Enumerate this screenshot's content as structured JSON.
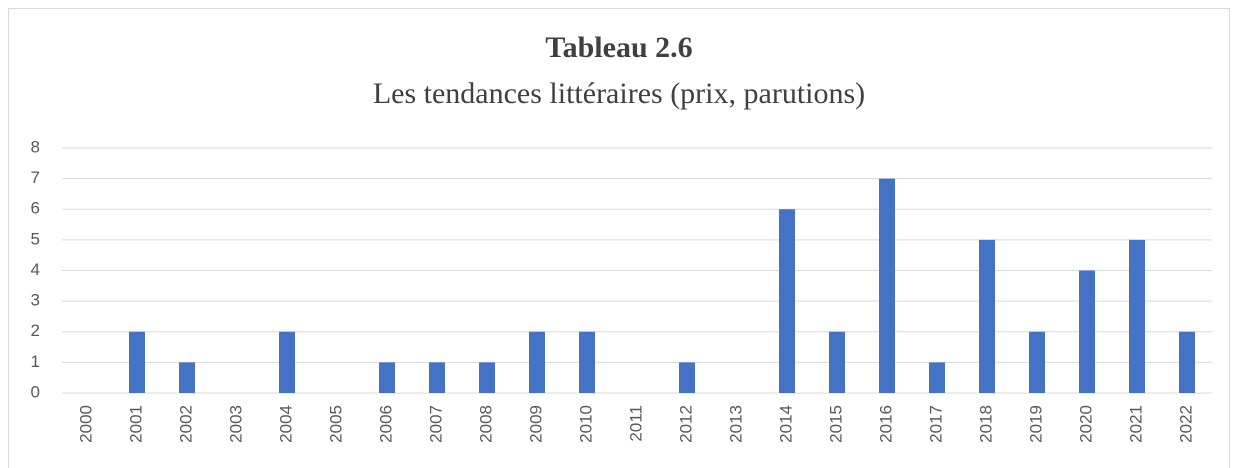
{
  "chart_data": {
    "type": "bar",
    "title": "Tableau 2.6",
    "subtitle": "Les tendances littéraires (prix, parutions)",
    "categories": [
      "2000",
      "2001",
      "2002",
      "2003",
      "2004",
      "2005",
      "2006",
      "2007",
      "2008",
      "2009",
      "2010",
      "2011",
      "2012",
      "2013",
      "2014",
      "2015",
      "2016",
      "2017",
      "2018",
      "2019",
      "2020",
      "2021",
      "2022"
    ],
    "values": [
      0,
      2,
      1,
      0,
      2,
      0,
      1,
      1,
      1,
      2,
      2,
      0,
      1,
      0,
      6,
      2,
      7,
      1,
      5,
      2,
      4,
      5,
      2
    ],
    "color": "#4472c4",
    "ylim": [
      0,
      8
    ],
    "yticks": [
      0,
      1,
      2,
      3,
      4,
      5,
      6,
      7,
      8
    ],
    "grid": true
  }
}
